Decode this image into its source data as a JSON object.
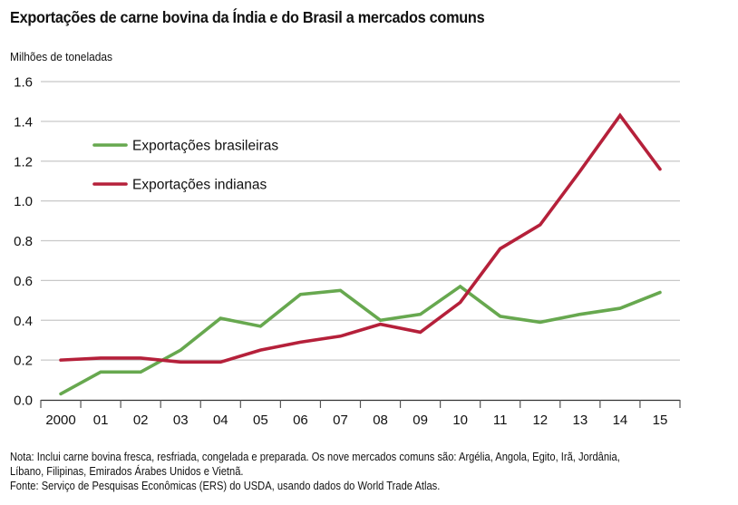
{
  "chart_data": {
    "type": "line",
    "title": "Exportações de carne bovina da Índia e do Brasil a mercados comuns",
    "ylabel": "Milhões de toneladas",
    "xlabel": "",
    "ylim": [
      0,
      1.6
    ],
    "yticks": [
      "0.0",
      "0.2",
      "0.4",
      "0.6",
      "0.8",
      "1.0",
      "1.2",
      "1.4",
      "1.6"
    ],
    "ytick_values": [
      0,
      0.2,
      0.4,
      0.6,
      0.8,
      1.0,
      1.2,
      1.4,
      1.6
    ],
    "categories": [
      "2000",
      "01",
      "02",
      "03",
      "04",
      "05",
      "06",
      "07",
      "08",
      "09",
      "10",
      "11",
      "12",
      "13",
      "14",
      "15"
    ],
    "grid": true,
    "legend_position": "top-left",
    "series": [
      {
        "name": "Exportações brasileiras",
        "color": "#67a84f",
        "values": [
          0.03,
          0.14,
          0.14,
          0.25,
          0.41,
          0.37,
          0.53,
          0.55,
          0.4,
          0.43,
          0.57,
          0.42,
          0.39,
          0.43,
          0.46,
          0.54
        ]
      },
      {
        "name": "Exportações indianas",
        "color": "#b5203a",
        "values": [
          0.2,
          0.21,
          0.21,
          0.19,
          0.19,
          0.25,
          0.29,
          0.32,
          0.38,
          0.34,
          0.49,
          0.76,
          0.88,
          1.15,
          1.43,
          1.16
        ]
      }
    ]
  },
  "notes": {
    "line1": "Nota: Inclui carne bovina fresca, resfriada, congelada e preparada. Os nove mercados comuns são: Argélia, Angola, Egito, Irã, Jordânia,",
    "line2": "Líbano, Filipinas, Emirados Árabes Unidos e Vietnã.",
    "source": "Fonte: Serviço de Pesquisas Econômicas (ERS) do USDA, usando dados do World Trade Atlas."
  }
}
